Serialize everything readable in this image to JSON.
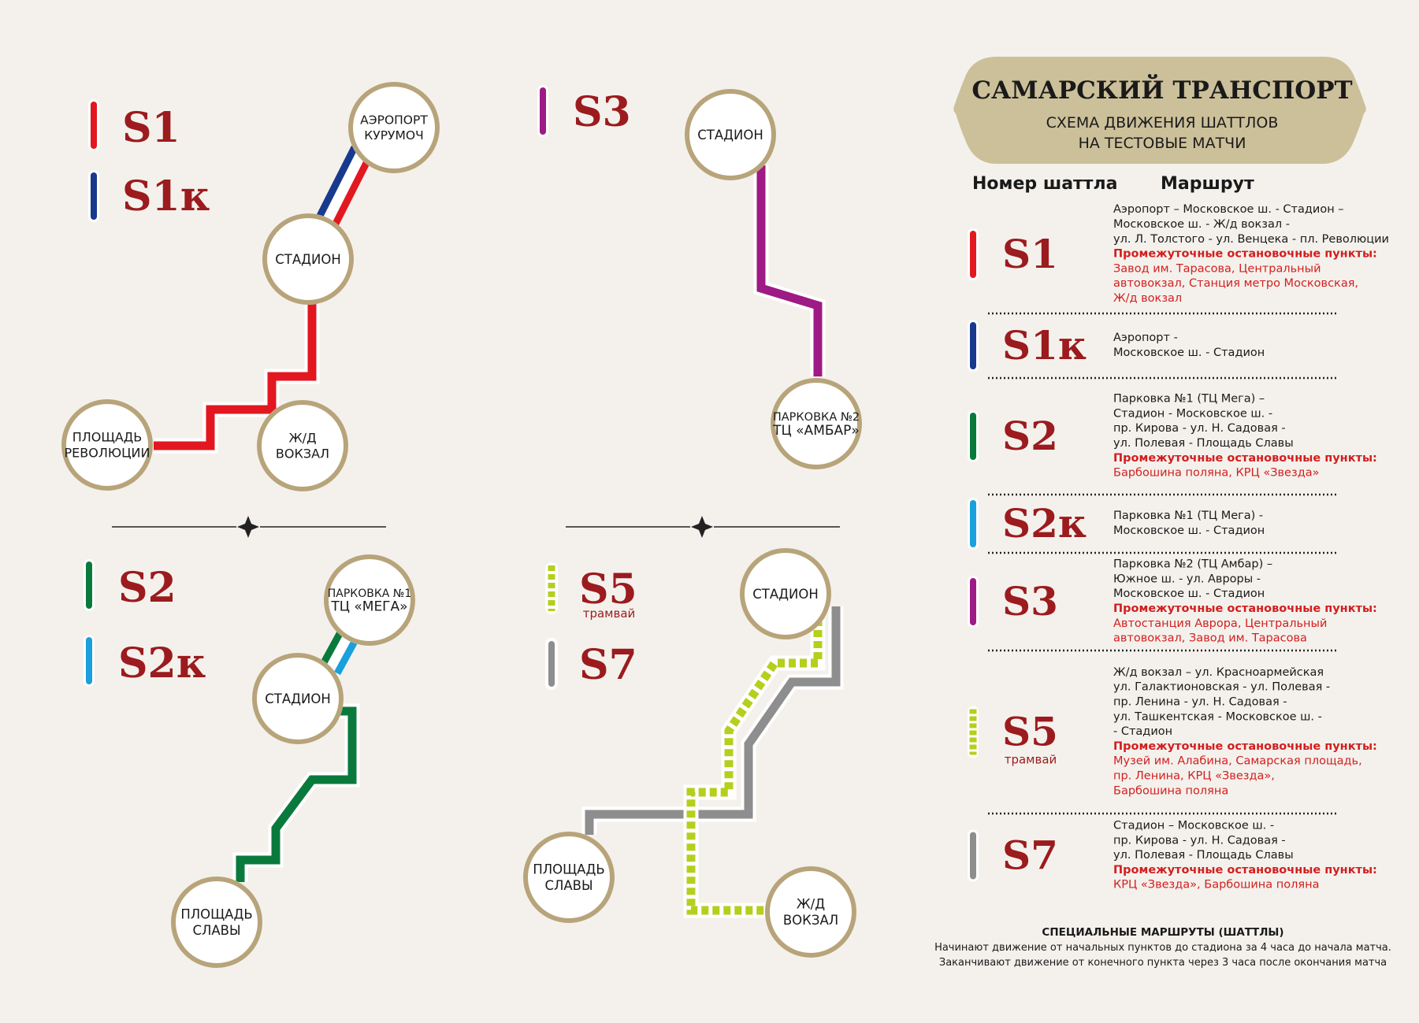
{
  "header": {
    "title": "САМАРСКИЙ ТРАНСПОРТ",
    "subtitle_line1": "СХЕМА ДВИЖЕНИЯ ШАТТЛОВ",
    "subtitle_line2": "НА ТЕСТОВЫЕ МАТЧИ"
  },
  "table_headers": {
    "number": "Номер шаттла",
    "route": "Маршрут"
  },
  "colors": {
    "S1": "#e3171f",
    "S1k": "#173a8e",
    "S2": "#0a7a3c",
    "S2k": "#1aa0dc",
    "S3": "#9e1a85",
    "S5": "#b5cf1d",
    "S7": "#8e8e8e",
    "code_text": "#9b1b1e",
    "stop_red": "#d21f1f",
    "ring": "#b8a47a",
    "banner": "#ccc09a"
  },
  "map_legends": {
    "S1": "S1",
    "S1k": "S1к",
    "S3": "S3",
    "S2": "S2",
    "S2k": "S2к",
    "S5": "S5",
    "S5_sub": "трамвай",
    "S7": "S7"
  },
  "nodes": {
    "airport": [
      "АЭРОПОРТ",
      "КУРУМОЧ"
    ],
    "stadium_a": [
      "СТАДИОН"
    ],
    "revolution": [
      "ПЛОЩАДЬ",
      "РЕВОЛЮЦИИ"
    ],
    "rail_a": [
      "Ж/Д",
      "ВОКЗАЛ"
    ],
    "stadium_b": [
      "СТАДИОН"
    ],
    "parking2": [
      "ПАРКОВКА №2",
      "ТЦ «АМБАР»"
    ],
    "parking1": [
      "ПАРКОВКА №1",
      "ТЦ «МЕГА»"
    ],
    "stadium_c": [
      "СТАДИОН"
    ],
    "glory_a": [
      "ПЛОЩАДЬ",
      "СЛАВЫ"
    ],
    "stadium_d": [
      "СТАДИОН"
    ],
    "glory_b": [
      "ПЛОЩАДЬ",
      "СЛАВЫ"
    ],
    "rail_b": [
      "Ж/Д",
      "ВОКЗАЛ"
    ]
  },
  "routes": [
    {
      "code": "S1",
      "color_key": "S1",
      "dashed": false,
      "sub": "",
      "plain": [
        "Аэропорт – Московское ш. - Стадион –",
        "Московское ш. - Ж/д вокзал -",
        "ул. Л. Толстого - ул. Венцека - пл. Революции"
      ],
      "stops_title": "Промежуточные остановочные пункты:",
      "stops": [
        "Завод им. Тарасова, Центральный",
        "автовокзал, Станция метро Московская,",
        "Ж/д вокзал"
      ]
    },
    {
      "code": "S1к",
      "color_key": "S1k",
      "dashed": false,
      "sub": "",
      "plain": [
        "Аэропорт -",
        "Московское ш. - Стадион"
      ],
      "stops_title": "",
      "stops": []
    },
    {
      "code": "S2",
      "color_key": "S2",
      "dashed": false,
      "sub": "",
      "plain": [
        "Парковка №1 (ТЦ Мега) –",
        "Стадион - Московское ш. -",
        "пр. Кирова - ул. Н. Садовая -",
        "ул. Полевая - Площадь Славы"
      ],
      "stops_title": "Промежуточные остановочные пункты:",
      "stops": [
        "Барбошина поляна, КРЦ «Звезда»"
      ]
    },
    {
      "code": "S2к",
      "color_key": "S2k",
      "dashed": false,
      "sub": "",
      "plain": [
        "Парковка №1 (ТЦ Мега) -",
        "Московское ш. - Стадион"
      ],
      "stops_title": "",
      "stops": []
    },
    {
      "code": "S3",
      "color_key": "S3",
      "dashed": false,
      "sub": "",
      "plain": [
        "Парковка №2  (ТЦ Амбар) –",
        "Южное ш. - ул. Авроры -",
        "Московское ш. - Стадион"
      ],
      "stops_title": "Промежуточные остановочные пункты:",
      "stops": [
        "Автостанция Аврора, Центральный",
        "автовокзал, Завод им. Тарасова"
      ]
    },
    {
      "code": "S5",
      "color_key": "S5",
      "dashed": true,
      "sub": "трамвай",
      "plain": [
        "Ж/д вокзал – ул. Красноармейская",
        "ул. Галактионовская - ул. Полевая -",
        "пр. Ленина - ул. Н. Садовая -",
        "ул. Ташкентская - Московское ш. -",
        " - Стадион"
      ],
      "stops_title": "Промежуточные остановочные пункты:",
      "stops": [
        "Музей им. Алабина, Самарская площадь,",
        "пр. Ленина, КРЦ «Звезда»,",
        "Барбошина поляна"
      ]
    },
    {
      "code": "S7",
      "color_key": "S7",
      "dashed": false,
      "sub": "",
      "plain": [
        "Стадион – Московское ш. -",
        "пр. Кирова - ул. Н. Садовая -",
        "ул. Полевая - Площадь Славы"
      ],
      "stops_title": "Промежуточные остановочные пункты:",
      "stops": [
        "КРЦ «Звезда», Барбошина поляна"
      ]
    }
  ],
  "footer": {
    "title": "СПЕЦИАЛЬНЫЕ МАРШРУТЫ (ШАТТЛЫ)",
    "line1": "Начинают движение от начальных пунктов до стадиона за 4 часа до начала матча.",
    "line2": "Заканчивают движение от конечного пункта через 3 часа после окончания матча"
  }
}
